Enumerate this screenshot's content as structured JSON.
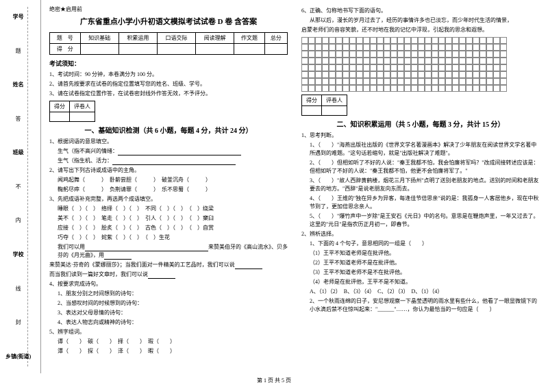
{
  "margin": {
    "l1": "学号",
    "l2": "姓名",
    "l3": "班级",
    "l4": "学校",
    "l5": "乡镇(街道)",
    "c1": "题",
    "c2": "答",
    "c3": "不",
    "c4": "内",
    "c5": "线",
    "c6": "封"
  },
  "seal": "绝密★启用前",
  "title": "广东省重点小学小升初语文模拟考试试卷 D 卷  含答案",
  "score_header": [
    "题　号",
    "知识基础",
    "积累运用",
    "口语交际",
    "阅读理解",
    "作文题",
    "总分"
  ],
  "score_row": "得　分",
  "notice_head": "考试须知：",
  "notice1": "1、考试时间：90 分钟，本卷满分为 100 分。",
  "notice2": "2、请首先按要求在试卷的指定位置填写您的姓名、班级、学号。",
  "notice3": "3、请在试卷指定位置作答，在试卷密封线外作答无效，不予评分。",
  "grade_l": "得分",
  "grade_r": "评卷人",
  "part1_title": "一、基础知识检测（共 6 小题，每题 4 分，共计 24 分）",
  "q1_1": "1、根据词语的意思填空。",
  "q1_1a": "生气（指不高兴的情绪：",
  "q1_1b": "生气（指生机、活力：",
  "q1_2": "2、请写出下列古诗或成语中的主角。",
  "q1_2a": "闻鸡起舞（　　　）　卧薪尝胆（　　　）　破釜沉舟（　　　）",
  "q1_2b": "鞠躬尽瘁（　　　）　负荆请罪（　　　）　乐不思蜀（　　　）",
  "q1_3": "3、先把成语补充完整，再选两个成语填空。",
  "q1_3a": "睡眼（　）（　）　络绎（　）（　）　不同（　）（　）　（　）绕梁",
  "q1_3b": "美不（　）（　）　笔走（　）（　）　引人（　）（　）　（　）窠臼",
  "q1_3c": "应接（　）（　）　脍炙（　）（　）　古色（　）（　）　（　）自赏",
  "q1_3d": "巧夺（　）（　）　姹紫（　）（　）　（　）生花",
  "q1_3e": "我们可以用",
  "q1_3f": "来赞美伯牙的《高山流水》、贝多芬的《月光曲》，用",
  "q1_3g": "来赞美达·芬奇的《蒙娜丽莎》；当我们面对一件精美的工艺品时，我们可以说",
  "q1_3h": "而当我们读到一篇好文章时，我们可以说",
  "q1_4": "4、按要求完成诗句。",
  "q1_4a": "1、朋友分别之时间想到的诗句：",
  "q1_4b": "2、当感叹时间的时候想到的诗句：",
  "q1_4c": "3、表达对父母恩情的诗句：",
  "q1_4d": "4、表达人物志向或精神的诗句：",
  "q1_5": "5、辨字组词。",
  "q1_5a": "谭（　　）　碳（　　）　择（　　）　瑕（　　）",
  "q1_5b": "潭（　　）　探（　　）　泽（　　）　暇（　　）",
  "q2_6": "6、正确、匀称地书写下面的语句。",
  "q2_6a": "从那以后，漫长的岁月过去了，经历的事情许多也已淡忘，而少年时代生活的情景，",
  "q2_6b": "启蒙老师们的音容笑貌，还不时地在我的记忆中浮现，引起我的思念和遐想。",
  "part2_title": "二、知识积累运用（共 5 小题，每题 3 分，共计 15 分）",
  "q2_1": "1、思考判断。",
  "q2_1a": "1、（　　）\"海燕出版社出版的《世界文学名著漫画本》解决了少年朋友在阅读世界文学名著中所遇到的难题。\"这句话若缩句，就是\"出版社解决了难题\"。",
  "q2_1b": "2、（　　）但相如听了不好的人说：\"秦王我都不怕，我会怕廉将军吗？\"改成间接转述应该是：但相如听了不好的人说：\"秦王我都不怕，他更不会怕廉将军了。\"",
  "q2_1c": "3、（　　）\"故人西辞黄鹤楼，烟花三月下扬州\"点明了送别老朋友的地点。送别的时间和老朋友要去的地方。\"西辞\"是说老朋友向东而去。",
  "q2_1d": "4、（　　）王维的\"独在异乡为异客，每逢佳节倍思亲\"说的是：我孤身一人客居他乡，现在中秋节到了，更加倍思念亲人。",
  "q2_1e": "5、（　　）\"爆竹声中一岁除\"是王安石《元日》中的名句。意思是在鞭炮声里，一年又过去了。这里的\"元日\"是指农历正月初一，即春节。",
  "q2_2": "2、辨析选择。",
  "q2_2a": "1、下面的 4 个句子，意思相同的一组是（　　）",
  "q2_2b": "（1）王平不知道老师是在批评他。",
  "q2_2c": "（2）王平不知道老师不是在批评他。",
  "q2_2d": "（3）王平不知道老师不是不在批评他。",
  "q2_2e": "（4）老师是在批评他，王平不是不知道。",
  "q2_2f": "A、（1）（2）　B、（3）（4）　C、（2）（3）　D、（1）（4）",
  "q2_2g": "2、一个秋雨连绵的日子，安尼想观察一下晶莹透明的雨水里有些什么，他看了一眼显微镜下的小水滴后禁不住惊叫起来：\"______\"……，你认为最恰当的一句应是（　　）",
  "footer": "第 1 页 共 5 页"
}
